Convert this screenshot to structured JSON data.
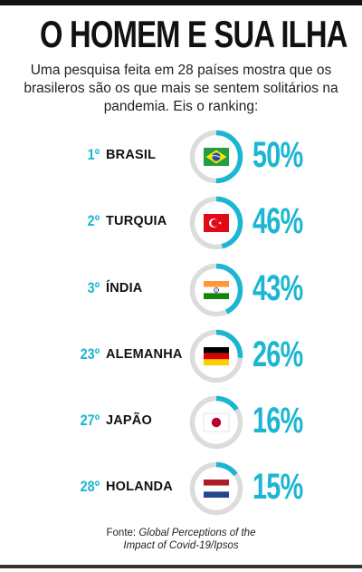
{
  "title": "O HOMEM E SUA ILHA",
  "subtitle": "Uma pesquisa feita em 28 países mostra que os brasileros são os que mais se sentem solitários na pandemia. Eis o ranking:",
  "source": {
    "prefix": "Fonte: ",
    "line1_italic": "Global Perceptions of the",
    "line2_italic": "Impact of Covid-19/Ipsos"
  },
  "colors": {
    "accent": "#1ab6d2",
    "track": "#dcdcdc",
    "text": "#111111"
  },
  "chart_data": {
    "type": "bar",
    "categories": [
      "BRASIL",
      "TURQUIA",
      "ÍNDIA",
      "ALEMANHA",
      "JAPÃO",
      "HOLANDA"
    ],
    "values": [
      50,
      46,
      43,
      26,
      16,
      15
    ],
    "ranks": [
      "1º",
      "2º",
      "3º",
      "23º",
      "27º",
      "28º"
    ],
    "labels": [
      "50%",
      "46%",
      "43%",
      "26%",
      "16%",
      "15%"
    ],
    "flags": [
      "brazil-flag",
      "turkey-flag",
      "india-flag",
      "germany-flag",
      "japan-flag",
      "netherlands-flag"
    ],
    "ylim": [
      0,
      100
    ]
  }
}
